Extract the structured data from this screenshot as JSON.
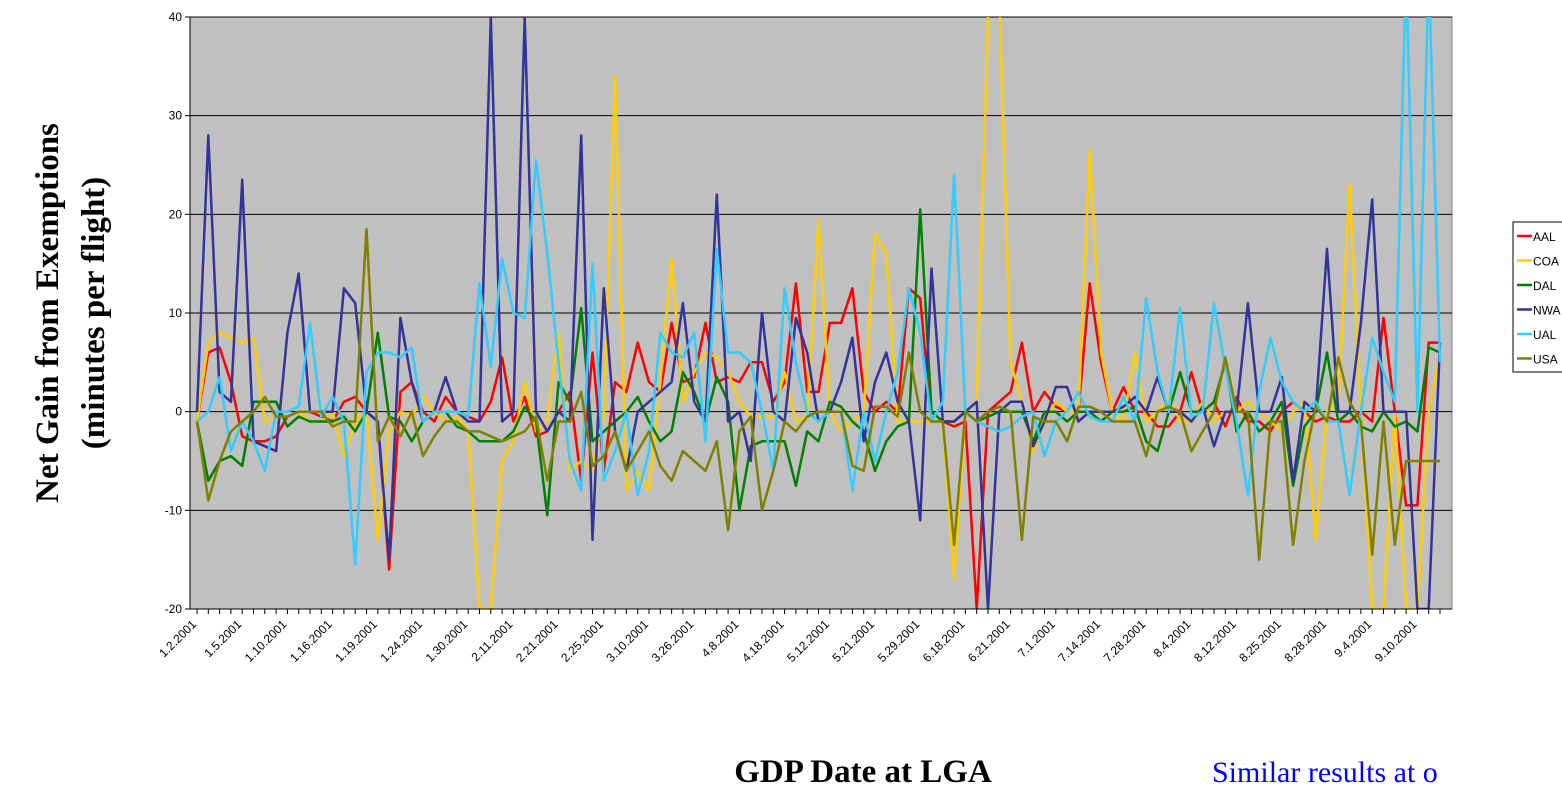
{
  "chart_data": {
    "type": "line",
    "ylabel": [
      "Net Gain from Exemptions",
      "(minutes per flight)"
    ],
    "xlabel": "GDP Date at LGA",
    "annotation": "Similar results at o",
    "categories": [
      "1.2.2001",
      null,
      null,
      null,
      "1.5.2001",
      null,
      null,
      null,
      "1.10.2001",
      null,
      null,
      null,
      "1.16.2001",
      null,
      null,
      null,
      "1.19.2001",
      null,
      null,
      null,
      "1.24.2001",
      null,
      null,
      null,
      "1.30.2001",
      null,
      null,
      null,
      "2.11.2001",
      null,
      null,
      null,
      "2.21.2001",
      null,
      null,
      null,
      "2.25.2001",
      null,
      null,
      null,
      "3.10.2001",
      null,
      null,
      null,
      "3.26.2001",
      null,
      null,
      null,
      "4.8.2001",
      null,
      null,
      null,
      "4.18.2001",
      null,
      null,
      null,
      "5.12.2001",
      null,
      null,
      null,
      "5.21.2001",
      null,
      null,
      null,
      "5.29.2001",
      null,
      null,
      null,
      "6.18.2001",
      null,
      null,
      null,
      "6.21.2001",
      null,
      null,
      null,
      "7.1.2001",
      null,
      null,
      null,
      "7.14.2001",
      null,
      null,
      null,
      "7.28.2001",
      null,
      null,
      null,
      "8.4.2001",
      null,
      null,
      null,
      "8.12.2001",
      null,
      null,
      null,
      "8.25.2001",
      null,
      null,
      null,
      "8.28.2001",
      null,
      null,
      null,
      "9.4.2001",
      null,
      null,
      null,
      "9.10.2001",
      null,
      null
    ],
    "ylim": [
      -20,
      40
    ],
    "yticks": [
      -20,
      -10,
      0,
      10,
      20,
      30,
      40
    ],
    "grid": true,
    "legend": "right",
    "series": [
      {
        "name": "AAL",
        "color": "#ff0000",
        "values": [
          -1,
          6,
          6.5,
          3,
          -2.5,
          -3,
          -3,
          -2.5,
          -0.5,
          0,
          0,
          -0.5,
          -1,
          1,
          1.5,
          0,
          -1,
          -16,
          2,
          3,
          0,
          -1,
          1.5,
          0,
          -0.5,
          -1,
          1,
          5.5,
          -1,
          1.5,
          -2.5,
          -2,
          0,
          2,
          -7,
          6,
          -6,
          3,
          2,
          7,
          3,
          2,
          9,
          3,
          3.5,
          9,
          3,
          3.5,
          3,
          5,
          5,
          1,
          3,
          13,
          2,
          2,
          9,
          9,
          12.5,
          2,
          0,
          1,
          0,
          12.5,
          11.5,
          -1,
          -1,
          -1.5,
          -1,
          -20,
          0,
          1,
          2,
          7,
          0,
          2,
          0.5,
          0,
          0,
          13,
          5,
          0,
          2.5,
          0,
          0,
          -1.5,
          -1.5,
          0,
          4,
          0,
          1,
          -1.5,
          1.5,
          -1,
          -1,
          -2,
          0,
          1,
          0,
          -1,
          -0.5,
          -1,
          -1,
          0,
          -1,
          9.5,
          0,
          -9.5,
          -9.5,
          7,
          7
        ]
      },
      {
        "name": "COA",
        "color": "#ffcc00",
        "values": [
          -1,
          7,
          8,
          7.5,
          7,
          7.5,
          -1,
          -0.5,
          -0.5,
          0,
          -1,
          -1,
          0,
          -4.5,
          -1,
          0,
          -13,
          -2,
          0,
          -0.5,
          1.5,
          0,
          -1,
          -0.5,
          -2,
          -20,
          -20,
          -5,
          -3,
          3,
          -2,
          -1,
          8,
          -6,
          -5,
          -6,
          0,
          34,
          -8,
          -6,
          -8,
          3,
          15.5,
          1,
          4,
          6,
          5.5,
          4,
          1,
          -0.5,
          -0.5,
          -0.5,
          4,
          -1,
          -0.5,
          19.5,
          0,
          -2,
          -1,
          0,
          18,
          16,
          -1,
          -1,
          -1,
          -1,
          -1,
          -17,
          0,
          1,
          40,
          42,
          5,
          1,
          -4,
          -1,
          1,
          0,
          0,
          26.5,
          6,
          0,
          -1,
          6,
          -1,
          0,
          1.5,
          -1,
          -1,
          1,
          -1,
          0,
          0,
          1,
          0,
          -1,
          -2,
          0,
          1,
          -13,
          0,
          1,
          23,
          0,
          -20,
          -20,
          0,
          -20,
          -20,
          0,
          6
        ]
      },
      {
        "name": "DAL",
        "color": "#008000",
        "values": [
          -1,
          -7,
          -5,
          -4.5,
          -5.5,
          1,
          1,
          1,
          -1.5,
          -0.5,
          -1,
          -1,
          -1,
          -0.5,
          -2,
          0,
          8,
          -0.5,
          -1,
          -3,
          -1,
          0,
          0,
          -1.5,
          -2,
          -3,
          -3,
          -3,
          -2,
          0.5,
          -1,
          -10.5,
          3,
          1,
          10.5,
          -3,
          -2,
          -1,
          0,
          1.5,
          -1,
          -3,
          -2,
          4,
          2,
          -1,
          3.5,
          1,
          -10,
          -3.5,
          -3,
          -3,
          -3,
          -7.5,
          -2,
          -3,
          1,
          0.5,
          -1,
          -2,
          -6,
          -3,
          -1.5,
          -1,
          20.5,
          0,
          -1,
          -1,
          0,
          -1,
          -0.5,
          0,
          0,
          0,
          -3,
          0,
          0,
          -1,
          0,
          0,
          -1,
          0,
          0,
          0.5,
          -3,
          -4,
          0,
          4,
          0,
          0,
          1,
          5,
          -2,
          0,
          -2,
          -1,
          1,
          -7.5,
          -1.5,
          0,
          6,
          -1,
          0,
          -1.5,
          -2,
          0,
          -1.5,
          -1,
          -2,
          6.5,
          6
        ]
      },
      {
        "name": "NWA",
        "color": "#333399",
        "values": [
          0,
          28,
          2,
          1,
          23.5,
          -3,
          -3.5,
          -4,
          8,
          14,
          0,
          0,
          0,
          12.5,
          11,
          0,
          -1,
          -15,
          9.5,
          3,
          -1,
          0,
          3.5,
          0,
          -1,
          -1,
          40,
          -1,
          0,
          40,
          0,
          -2,
          0,
          -1,
          28,
          -13,
          12.5,
          -2,
          -6,
          0,
          1,
          2,
          3,
          11,
          1,
          -1,
          22,
          -1,
          0,
          -5,
          10,
          0,
          -1,
          9.5,
          6,
          -1,
          0,
          3,
          7.5,
          -3,
          3,
          6,
          1,
          -1,
          -11,
          14.5,
          -1,
          -1,
          0,
          1,
          -20,
          0,
          1,
          1,
          -3.5,
          -1,
          2.5,
          2.5,
          -1,
          0,
          0,
          0,
          0.5,
          1.5,
          0,
          3.5,
          0,
          0,
          -1,
          0.5,
          -3.5,
          0,
          0,
          11,
          0,
          0,
          3.5,
          -7,
          1,
          0,
          16.5,
          0,
          0,
          9,
          21.5,
          0,
          0,
          0,
          -20,
          -20,
          7
        ]
      },
      {
        "name": "UAL",
        "color": "#33ccff",
        "values": [
          -1,
          0,
          3.5,
          -4,
          -1,
          -3,
          -6,
          0,
          0,
          0.5,
          9,
          -0.5,
          1.5,
          -1,
          -15.5,
          4,
          6,
          6,
          5.5,
          6.5,
          -1,
          0,
          0,
          0,
          -0.5,
          13,
          4.5,
          15.5,
          10,
          9.5,
          25.5,
          16,
          5,
          -5,
          -8,
          15,
          -7,
          -4,
          0,
          -8.5,
          -4,
          8,
          6,
          5.5,
          8,
          -3,
          16.5,
          6,
          6,
          5,
          0,
          -6,
          12.5,
          5,
          0,
          -1,
          0,
          0,
          -8,
          0,
          -5,
          0,
          4,
          12.5,
          8,
          -1,
          1,
          24,
          0,
          -1,
          -1.5,
          -2,
          -1.5,
          -0.5,
          0,
          -4.5,
          -1,
          0,
          2,
          -0.5,
          -1,
          -1,
          1.5,
          -1,
          11.5,
          4,
          0,
          10.5,
          -0.5,
          0,
          11,
          4.5,
          -1,
          -8.5,
          2,
          7.5,
          3,
          1,
          0,
          1,
          -1,
          -1,
          -8.5,
          0,
          7.5,
          4,
          1,
          45,
          0,
          45,
          5
        ]
      },
      {
        "name": "USA",
        "color": "#808000",
        "values": [
          -1,
          -9,
          -5,
          -2,
          -1,
          0,
          1.5,
          -0.5,
          -0.5,
          0,
          0,
          0,
          -1.5,
          -1,
          -1,
          18.5,
          -3,
          -0.5,
          -2.5,
          0,
          -4.5,
          -2.5,
          -1,
          -1,
          -2,
          -2,
          -2.5,
          -3,
          -2.5,
          -2,
          -0.5,
          -7,
          -1,
          -1,
          2,
          -5.5,
          -4.5,
          -2,
          -6,
          -4,
          -2,
          -5.5,
          -7,
          -4,
          -5,
          -6,
          -3,
          -12,
          -2,
          -0.5,
          -10,
          -6,
          -1,
          -2,
          -0.5,
          0,
          0,
          0,
          -5.5,
          -6,
          0.5,
          0.5,
          -0.5,
          6,
          0,
          -1,
          -1,
          -13.5,
          0,
          -1,
          0,
          0.5,
          0,
          -13,
          -0.5,
          -1,
          -1,
          -3,
          0.5,
          0.5,
          0,
          -1,
          -1,
          -1,
          -4.5,
          0,
          0.5,
          0,
          -4,
          -2,
          0,
          5.5,
          0,
          0,
          -15,
          -1,
          -1,
          -13.5,
          -5,
          0.5,
          -1,
          5.5,
          1,
          -1,
          -14.5,
          -1,
          -13.5,
          -5,
          -5,
          -5,
          -5
        ]
      }
    ]
  }
}
